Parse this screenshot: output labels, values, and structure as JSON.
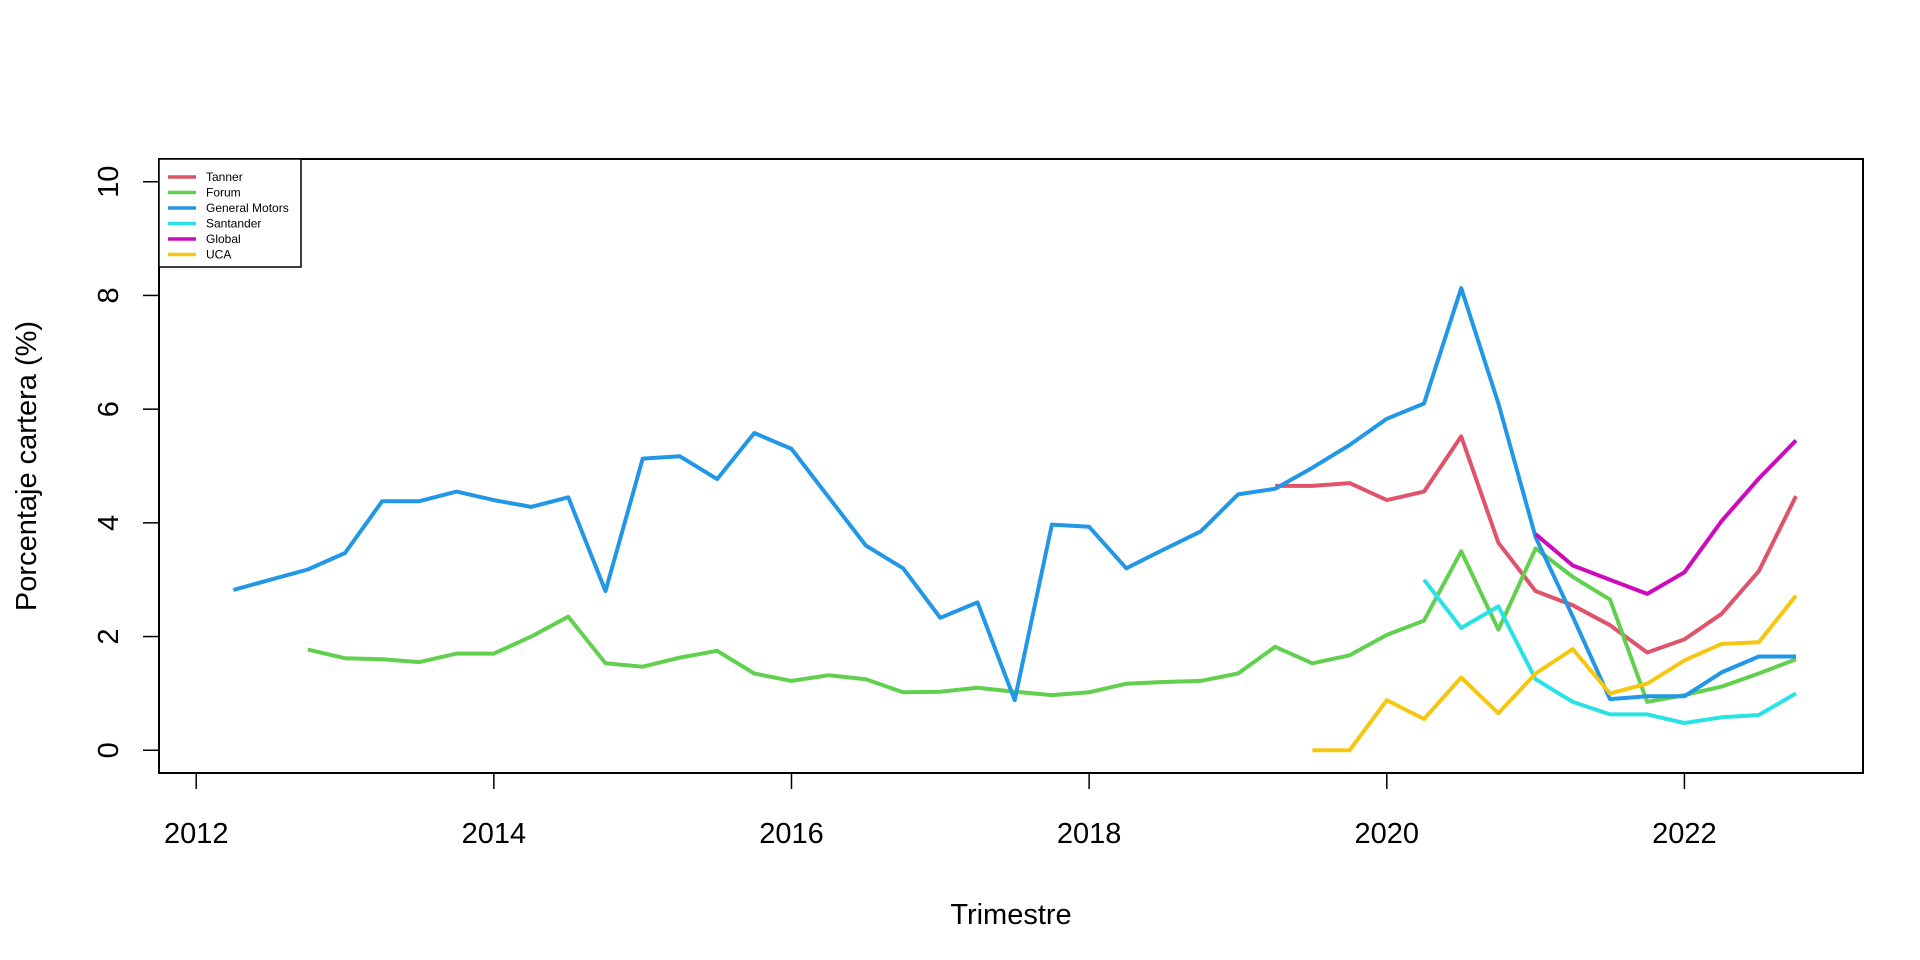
{
  "chart_data": {
    "type": "line",
    "title": "",
    "xlabel": "Trimestre",
    "ylabel": "Porcentaje cartera (%)",
    "xlim": [
      2011.75,
      2023.2
    ],
    "ylim": [
      -0.4,
      10.4
    ],
    "x_ticks": [
      2012,
      2014,
      2016,
      2018,
      2020,
      2022
    ],
    "y_ticks": [
      0,
      2,
      4,
      6,
      8,
      10
    ],
    "grid": false,
    "legend_position": "top-left",
    "series": [
      {
        "name": "Tanner",
        "color": "#DF536B",
        "x": [
          2019.25,
          2019.5,
          2019.75,
          2020.0,
          2020.25,
          2020.5,
          2020.75,
          2021.0,
          2021.25,
          2021.5,
          2021.75,
          2022.0,
          2022.25,
          2022.5,
          2022.75
        ],
        "values": [
          4.65,
          4.65,
          4.7,
          4.4,
          4.55,
          5.52,
          3.65,
          2.8,
          2.55,
          2.2,
          1.72,
          1.95,
          2.4,
          3.15,
          4.47
        ]
      },
      {
        "name": "Forum",
        "color": "#61D04F",
        "x": [
          2012.75,
          2013.0,
          2013.25,
          2013.5,
          2013.75,
          2014.0,
          2014.25,
          2014.5,
          2014.75,
          2015.0,
          2015.25,
          2015.5,
          2015.75,
          2016.0,
          2016.25,
          2016.5,
          2016.75,
          2017.0,
          2017.25,
          2017.5,
          2017.75,
          2018.0,
          2018.25,
          2018.5,
          2018.75,
          2019.0,
          2019.25,
          2019.5,
          2019.75,
          2020.0,
          2020.25,
          2020.5,
          2020.75,
          2021.0,
          2021.25,
          2021.5,
          2021.75,
          2022.0,
          2022.25,
          2022.5,
          2022.75
        ],
        "values": [
          1.77,
          1.62,
          1.6,
          1.55,
          1.7,
          1.7,
          2.0,
          2.35,
          1.53,
          1.47,
          1.63,
          1.75,
          1.35,
          1.22,
          1.32,
          1.25,
          1.02,
          1.03,
          1.1,
          1.03,
          0.97,
          1.02,
          1.17,
          1.2,
          1.22,
          1.35,
          1.82,
          1.53,
          1.67,
          2.03,
          2.28,
          3.5,
          2.12,
          3.55,
          3.05,
          2.65,
          0.85,
          0.97,
          1.12,
          1.35,
          1.6
        ]
      },
      {
        "name": "General Motors",
        "color": "#2297E6",
        "x": [
          2012.25,
          2012.5,
          2012.75,
          2013.0,
          2013.25,
          2013.5,
          2013.75,
          2014.0,
          2014.25,
          2014.5,
          2014.75,
          2015.0,
          2015.25,
          2015.5,
          2015.75,
          2016.0,
          2016.25,
          2016.5,
          2016.75,
          2017.0,
          2017.25,
          2017.5,
          2017.75,
          2018.0,
          2018.25,
          2018.5,
          2018.75,
          2019.0,
          2019.25,
          2019.5,
          2019.75,
          2020.0,
          2020.25,
          2020.5,
          2020.75,
          2021.0,
          2021.25,
          2021.5,
          2021.75,
          2022.0,
          2022.25,
          2022.5,
          2022.75
        ],
        "values": [
          2.82,
          3.0,
          3.18,
          3.47,
          4.38,
          4.38,
          4.55,
          4.4,
          4.28,
          4.45,
          2.8,
          5.13,
          5.17,
          4.77,
          5.58,
          5.3,
          4.45,
          3.6,
          3.2,
          2.33,
          2.6,
          0.88,
          3.97,
          3.93,
          3.2,
          3.53,
          3.85,
          4.5,
          4.6,
          4.97,
          5.37,
          5.83,
          6.1,
          8.13,
          6.1,
          3.75,
          2.35,
          0.9,
          0.95,
          0.95,
          1.37,
          1.65,
          1.65
        ]
      },
      {
        "name": "Santander",
        "color": "#28E2E5",
        "x": [
          2020.25,
          2020.5,
          2020.75,
          2021.0,
          2021.25,
          2021.5,
          2021.75,
          2022.0,
          2022.25,
          2022.5,
          2022.75
        ],
        "values": [
          3.0,
          2.15,
          2.53,
          1.25,
          0.85,
          0.63,
          0.63,
          0.48,
          0.58,
          0.62,
          1.0
        ]
      },
      {
        "name": "Global",
        "color": "#CD0BBC",
        "x": [
          2021.0,
          2021.25,
          2021.5,
          2021.75,
          2022.0,
          2022.25,
          2022.5,
          2022.75
        ],
        "values": [
          3.8,
          3.25,
          3.0,
          2.75,
          3.13,
          4.03,
          4.78,
          5.45
        ]
      },
      {
        "name": "UCA",
        "color": "#F5C710",
        "x": [
          2019.5,
          2019.75,
          2020.0,
          2020.25,
          2020.5,
          2020.75,
          2021.0,
          2021.25,
          2021.5,
          2021.75,
          2022.0,
          2022.25,
          2022.5,
          2022.75
        ],
        "values": [
          0.0,
          0.0,
          0.88,
          0.55,
          1.28,
          0.65,
          1.35,
          1.78,
          1.0,
          1.17,
          1.58,
          1.87,
          1.9,
          2.72
        ]
      }
    ]
  }
}
